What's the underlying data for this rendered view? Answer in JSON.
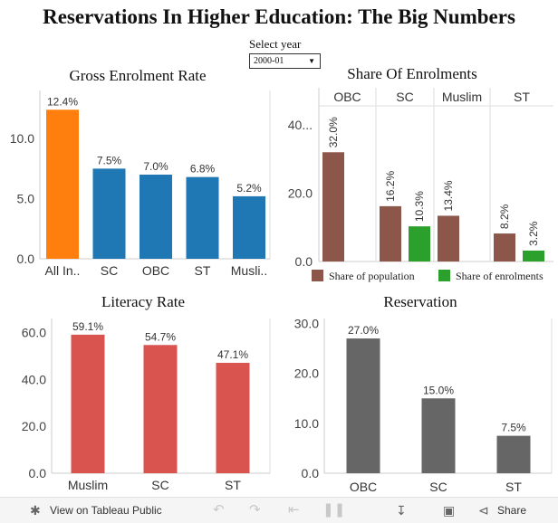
{
  "page": {
    "title": "Reservations In Higher Education: The Big Numbers"
  },
  "filter": {
    "label": "Select year",
    "value": "2000-01"
  },
  "charts": [
    {
      "id": "ger",
      "type": "bar",
      "title": "Gross Enrolment Rate",
      "categories": [
        "All In..",
        "SC",
        "OBC",
        "ST",
        "Musli.."
      ],
      "values": [
        12.4,
        7.5,
        7.0,
        6.8,
        5.2
      ],
      "labels": [
        "12.4%",
        "7.5%",
        "7.0%",
        "6.8%",
        "5.2%"
      ],
      "colors": [
        "#ff7f0e",
        "#1f77b4",
        "#1f77b4",
        "#1f77b4",
        "#1f77b4"
      ],
      "yticks": [
        0,
        5,
        10
      ],
      "ytick_labels": [
        "0.0",
        "5.0",
        "10.0"
      ],
      "ylim": [
        0,
        14
      ]
    },
    {
      "id": "share",
      "type": "bar",
      "title": "Share Of Enrolments",
      "groups": [
        "OBC",
        "SC",
        "Muslim",
        "ST"
      ],
      "series": [
        {
          "name": "Share of population",
          "color": "#8c564b",
          "values": [
            32.0,
            16.2,
            13.4,
            8.2
          ],
          "labels": [
            "32.0%",
            "16.2%",
            "13.4%",
            "8.2%"
          ]
        },
        {
          "name": "Share of enrolments",
          "color": "#2ca02c",
          "values": [
            null,
            10.3,
            null,
            3.2
          ],
          "labels": [
            "",
            "10.3%",
            "",
            "3.2%"
          ]
        }
      ],
      "yticks": [
        0,
        20,
        40
      ],
      "ytick_labels": [
        "0.0",
        "20.0",
        "40..."
      ],
      "ylim": [
        0,
        44
      ],
      "legend_position": "bottom"
    },
    {
      "id": "literacy",
      "type": "bar",
      "title": "Literacy Rate",
      "categories": [
        "Muslim",
        "SC",
        "ST"
      ],
      "values": [
        59.1,
        54.7,
        47.1
      ],
      "labels": [
        "59.1%",
        "54.7%",
        "47.1%"
      ],
      "colors": [
        "#d9534f",
        "#d9534f",
        "#d9534f"
      ],
      "yticks": [
        0,
        20,
        40,
        60
      ],
      "ytick_labels": [
        "0.0",
        "20.0",
        "40.0",
        "60.0"
      ],
      "ylim": [
        0,
        66
      ]
    },
    {
      "id": "reservation",
      "type": "bar",
      "title": "Reservation",
      "categories": [
        "OBC",
        "SC",
        "ST"
      ],
      "values": [
        27.0,
        15.0,
        7.5
      ],
      "labels": [
        "27.0%",
        "15.0%",
        "7.5%"
      ],
      "colors": [
        "#666666",
        "#666666",
        "#666666"
      ],
      "yticks": [
        0,
        10,
        20,
        30
      ],
      "ytick_labels": [
        "0.0",
        "10.0",
        "20.0",
        "30.0"
      ],
      "ylim": [
        0,
        31
      ]
    }
  ],
  "footer": {
    "view_label": "View on Tableau Public",
    "share_label": "Share",
    "icons": [
      "tableau-icon",
      "undo-icon",
      "redo-icon",
      "revert-icon",
      "pause-icon",
      "download-icon",
      "fullscreen-icon",
      "share-icon"
    ]
  }
}
